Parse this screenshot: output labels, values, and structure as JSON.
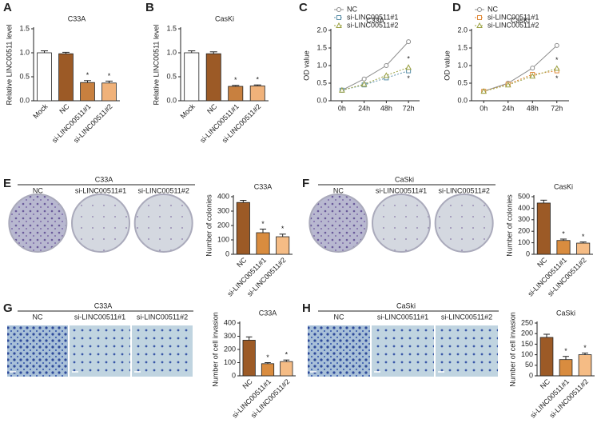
{
  "chart_data": [
    {
      "type": "bar",
      "panel_label": "A",
      "title": "C33A",
      "y_label": "Relative LINC00511 level",
      "categories": [
        "Mock",
        "NC",
        "si-LINC00511#1",
        "si-LINC00511#2"
      ],
      "values": [
        1.0,
        0.98,
        0.38,
        0.37
      ],
      "errors": [
        0.04,
        0.03,
        0.04,
        0.04
      ],
      "colors": [
        "#ffffff",
        "#9c5a26",
        "#c8803f",
        "#f0b27a"
      ],
      "significance": [
        null,
        null,
        "*",
        "*"
      ],
      "ylim": [
        0,
        1.5
      ],
      "yticks": [
        {
          "value": 0,
          "label": "0.0"
        },
        {
          "value": 0.5,
          "label": "0.5"
        },
        {
          "value": 1,
          "label": "1.0"
        },
        {
          "value": 1.5,
          "label": "1.5"
        }
      ]
    },
    {
      "type": "bar",
      "panel_label": "B",
      "title": "CasKi",
      "y_label": "Relative LINC00511 level",
      "categories": [
        "Mock",
        "NC",
        "si-LINC00511#1",
        "si-LINC00511#2"
      ],
      "values": [
        1.0,
        0.98,
        0.3,
        0.31
      ],
      "errors": [
        0.04,
        0.04,
        0.02,
        0.02
      ],
      "colors": [
        "#ffffff",
        "#9c5a26",
        "#c8803f",
        "#f0b27a"
      ],
      "significance": [
        null,
        null,
        "*",
        "*"
      ],
      "ylim": [
        0,
        1.5
      ],
      "yticks": [
        {
          "value": 0,
          "label": "0.0"
        },
        {
          "value": 0.5,
          "label": "0.5"
        },
        {
          "value": 1,
          "label": "1.0"
        },
        {
          "value": 1.5,
          "label": "1.5"
        }
      ]
    },
    {
      "type": "line",
      "panel_label": "C",
      "title": "C33A",
      "y_label": "OD value",
      "categories": [
        "0h",
        "24h",
        "48h",
        "72h"
      ],
      "series": [
        {
          "name": "NC",
          "color": "#8c8c8c",
          "values": [
            0.3,
            0.62,
            1.0,
            1.68
          ]
        },
        {
          "name": "si-LINC00511#1",
          "color": "#5b8fa8",
          "values": [
            0.3,
            0.45,
            0.65,
            0.85
          ],
          "significance": "*"
        },
        {
          "name": "si-LINC00511#2",
          "color": "#9aa040",
          "values": [
            0.3,
            0.47,
            0.72,
            0.95
          ],
          "significance": "*"
        }
      ],
      "ylim": [
        0,
        2
      ],
      "yticks": [
        {
          "value": 0,
          "label": "0.0"
        },
        {
          "value": 0.5,
          "label": "0.5"
        },
        {
          "value": 1,
          "label": "1.0"
        },
        {
          "value": 1.5,
          "label": "1.5"
        },
        {
          "value": 2,
          "label": "2.0"
        }
      ]
    },
    {
      "type": "line",
      "panel_label": "D",
      "title": "CasKi",
      "y_label": "OD value",
      "categories": [
        "0h",
        "24h",
        "48h",
        "72h"
      ],
      "series": [
        {
          "name": "NC",
          "color": "#8c8c8c",
          "values": [
            0.27,
            0.5,
            0.93,
            1.57
          ]
        },
        {
          "name": "si-LINC00511#1",
          "color": "#e08a3a",
          "values": [
            0.27,
            0.47,
            0.75,
            0.85
          ],
          "significance": "*"
        },
        {
          "name": "si-LINC00511#2",
          "color": "#9aa040",
          "values": [
            0.27,
            0.45,
            0.7,
            0.92
          ],
          "significance": "*"
        }
      ],
      "ylim": [
        0,
        2
      ],
      "yticks": [
        {
          "value": 0,
          "label": "0.0"
        },
        {
          "value": 0.5,
          "label": "0.5"
        },
        {
          "value": 1,
          "label": "1.0"
        },
        {
          "value": 1.5,
          "label": "1.5"
        },
        {
          "value": 2,
          "label": "2.0"
        }
      ]
    },
    {
      "type": "bar",
      "title": "C33A",
      "y_label": "Number of colonies",
      "categories": [
        "NC",
        "si-LINC00511#1",
        "si-LINC00511#2"
      ],
      "values": [
        360,
        150,
        122
      ],
      "errors": [
        15,
        25,
        18
      ],
      "colors": [
        "#9c5a26",
        "#d98c3f",
        "#f5bc85"
      ],
      "significance": [
        null,
        "*",
        "*"
      ],
      "ylim": [
        0,
        400
      ],
      "yticks": [
        0,
        100,
        200,
        300,
        400
      ]
    },
    {
      "type": "bar",
      "title": "CasKi",
      "y_label": "Number of colonies",
      "categories": [
        "NC",
        "si-LINC00511#1",
        "si-LINC00511#2"
      ],
      "values": [
        445,
        120,
        97
      ],
      "errors": [
        25,
        12,
        10
      ],
      "colors": [
        "#9c5a26",
        "#d98c3f",
        "#f5bc85"
      ],
      "significance": [
        null,
        "*",
        "*"
      ],
      "ylim": [
        0,
        500
      ],
      "yticks": [
        0,
        100,
        200,
        300,
        400,
        500
      ]
    },
    {
      "type": "bar",
      "title": "C33A",
      "y_label": "Number of cell invasion",
      "categories": [
        "NC",
        "si-LINC00511#1",
        "si-LINC00511#2"
      ],
      "values": [
        270,
        92,
        108
      ],
      "errors": [
        25,
        8,
        12
      ],
      "colors": [
        "#9c5a26",
        "#d98c3f",
        "#f5bc85"
      ],
      "significance": [
        null,
        "*",
        "*"
      ],
      "ylim": [
        0,
        400
      ],
      "yticks": [
        0,
        100,
        200,
        300,
        400
      ]
    },
    {
      "type": "bar",
      "title": "CaSki",
      "y_label": "Number of cell invasion",
      "categories": [
        "NC",
        "si-LINC00511#1",
        "si-LINC00511#2"
      ],
      "values": [
        182,
        77,
        100
      ],
      "errors": [
        15,
        15,
        8
      ],
      "colors": [
        "#9c5a26",
        "#d98c3f",
        "#f5bc85"
      ],
      "significance": [
        null,
        "*",
        "*"
      ],
      "ylim": [
        0,
        250
      ],
      "yticks": [
        0,
        50,
        100,
        150,
        200,
        250
      ]
    }
  ],
  "image_panels": [
    {
      "panel_label": "E",
      "title": "C33A",
      "labels": [
        "NC",
        "si-LINC00511#1",
        "si-LINC00511#2"
      ]
    },
    {
      "panel_label": "F",
      "title": "CaSki",
      "labels": [
        "NC",
        "si-LINC00511#1",
        "si-LINC00511#2"
      ]
    },
    {
      "panel_label": "G",
      "title": "C33A",
      "labels": [
        "NC",
        "si-LINC00511#1",
        "si-LINC00511#2"
      ]
    },
    {
      "panel_label": "H",
      "title": "CaSki",
      "labels": [
        "NC",
        "si-LINC00511#1",
        "si-LINC00511#2"
      ]
    }
  ]
}
